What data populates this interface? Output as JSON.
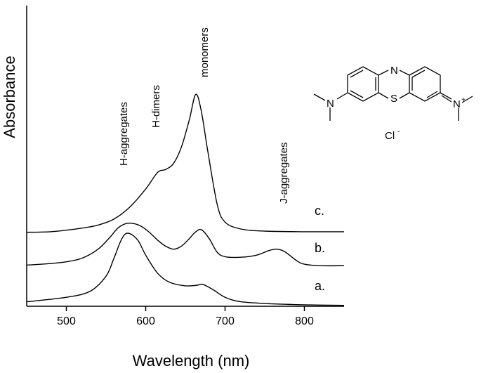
{
  "chart_data": {
    "type": "line",
    "xlabel": "Wavelength (nm)",
    "ylabel": "Absorbance",
    "xlim": [
      450,
      850
    ],
    "ylim": [
      0,
      1.0
    ],
    "xticks": [
      "500",
      "600",
      "700",
      "800"
    ],
    "yticks_shown": false,
    "grid": false,
    "series": [
      {
        "name": "c.",
        "x": [
          450,
          480,
          500,
          520,
          540,
          560,
          580,
          600,
          615,
          625,
          635,
          645,
          655,
          663,
          670,
          678,
          690,
          700,
          720,
          750,
          800,
          850
        ],
        "y": [
          0.246,
          0.248,
          0.253,
          0.26,
          0.27,
          0.29,
          0.33,
          0.39,
          0.445,
          0.455,
          0.475,
          0.53,
          0.62,
          0.705,
          0.65,
          0.52,
          0.34,
          0.28,
          0.257,
          0.25,
          0.248,
          0.248
        ]
      },
      {
        "name": "b.",
        "x": [
          450,
          480,
          500,
          520,
          540,
          555,
          565,
          575,
          585,
          595,
          605,
          615,
          625,
          635,
          645,
          655,
          662,
          670,
          680,
          690,
          700,
          720,
          740,
          755,
          765,
          775,
          790,
          800,
          820,
          850
        ],
        "y": [
          0.137,
          0.142,
          0.148,
          0.16,
          0.19,
          0.23,
          0.26,
          0.275,
          0.275,
          0.265,
          0.245,
          0.22,
          0.2,
          0.19,
          0.2,
          0.225,
          0.245,
          0.255,
          0.225,
          0.18,
          0.165,
          0.163,
          0.17,
          0.185,
          0.19,
          0.182,
          0.152,
          0.14,
          0.135,
          0.135
        ]
      },
      {
        "name": "a.",
        "x": [
          450,
          500,
          530,
          550,
          560,
          570,
          578,
          590,
          600,
          615,
          630,
          650,
          665,
          672,
          685,
          700,
          720,
          760,
          800,
          850
        ],
        "y": [
          0.015,
          0.03,
          0.05,
          0.1,
          0.16,
          0.225,
          0.243,
          0.22,
          0.17,
          0.11,
          0.08,
          0.068,
          0.07,
          0.073,
          0.055,
          0.03,
          0.015,
          0.008,
          0.005,
          0.003
        ]
      }
    ],
    "annotations": [
      "H-aggregates",
      "H-dimers",
      "monomers",
      "J-aggregates"
    ],
    "inset": {
      "type": "chemical-structure",
      "labels": [
        "N",
        "S",
        "N",
        "N",
        "+",
        "Cl",
        "-"
      ]
    }
  }
}
